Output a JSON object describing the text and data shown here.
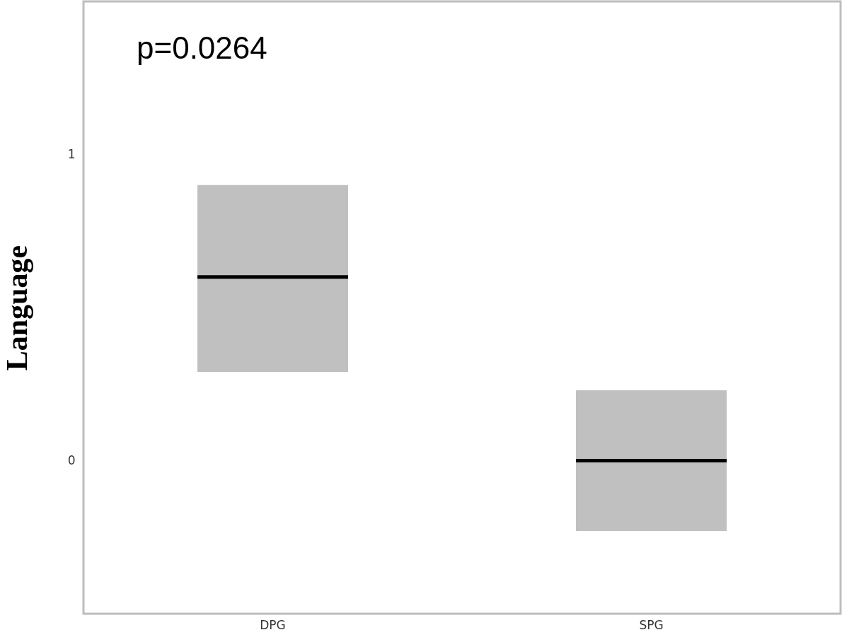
{
  "chart_data": {
    "type": "box",
    "ylabel": "Language",
    "categories": [
      "DPG",
      "SPG"
    ],
    "boxes": [
      {
        "low": 0.29,
        "q1": 0.29,
        "median": 0.6,
        "q3": 0.9,
        "high": 0.9
      },
      {
        "low": -0.23,
        "q1": -0.23,
        "median": 0,
        "q3": 0.23,
        "high": 0.23
      }
    ],
    "color": "#c0c0c0",
    "ylim": [
      -0.5,
      1.5
    ],
    "yticks": [
      0,
      1
    ],
    "grid": false,
    "annotations": [
      "p=0.0264"
    ]
  }
}
